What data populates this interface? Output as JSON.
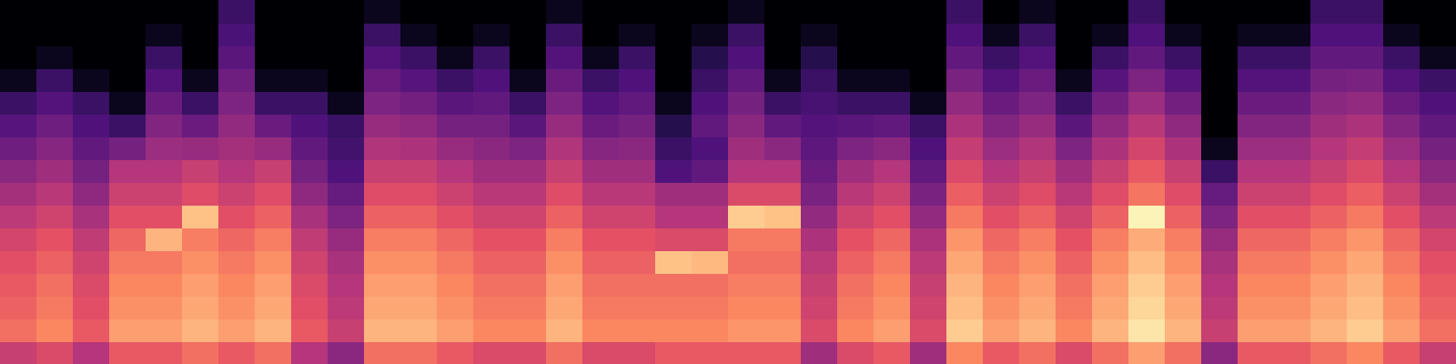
{
  "chart_data": {
    "type": "heatmap",
    "tick_labels": false,
    "xlim": [
      0,
      40
    ],
    "ylim": [
      0,
      16
    ],
    "color_range": [
      0,
      100
    ],
    "cells": [
      [
        55,
        70,
        67,
        65,
        62,
        58,
        52,
        46,
        40,
        33,
        27,
        20,
        5,
        0,
        0,
        0
      ],
      [
        60,
        75,
        72,
        70,
        67,
        63,
        57,
        51,
        45,
        39,
        33,
        26,
        20,
        5,
        0,
        0
      ],
      [
        50,
        65,
        62,
        60,
        57,
        53,
        47,
        41,
        35,
        30,
        25,
        20,
        5,
        0,
        0,
        0
      ],
      [
        65,
        80,
        77,
        75,
        72,
        68,
        62,
        56,
        50,
        35,
        20,
        5,
        0,
        0,
        0,
        0
      ],
      [
        65,
        80,
        77,
        75,
        72,
        85,
        62,
        56,
        50,
        44,
        38,
        32,
        26,
        20,
        5,
        0
      ],
      [
        70,
        85,
        82,
        80,
        77,
        73,
        88,
        61,
        55,
        43,
        32,
        20,
        5,
        0,
        0,
        0
      ],
      [
        65,
        80,
        77,
        75,
        72,
        68,
        62,
        56,
        50,
        46,
        42,
        37,
        33,
        28,
        24,
        20
      ],
      [
        70,
        85,
        82,
        80,
        77,
        73,
        67,
        61,
        55,
        43,
        32,
        20,
        5,
        0,
        0,
        0
      ],
      [
        50,
        65,
        62,
        60,
        57,
        53,
        47,
        41,
        35,
        30,
        25,
        20,
        5,
        0,
        0,
        0
      ],
      [
        40,
        55,
        52,
        50,
        47,
        43,
        37,
        31,
        25,
        22,
        20,
        5,
        0,
        0,
        0,
        0
      ],
      [
        70,
        85,
        82,
        80,
        77,
        73,
        67,
        61,
        55,
        49,
        43,
        37,
        32,
        26,
        20,
        5
      ],
      [
        70,
        85,
        82,
        80,
        77,
        73,
        67,
        61,
        55,
        48,
        41,
        34,
        27,
        20,
        5,
        0
      ],
      [
        65,
        80,
        77,
        75,
        72,
        68,
        62,
        56,
        50,
        43,
        35,
        28,
        20,
        5,
        0,
        0
      ],
      [
        60,
        75,
        72,
        70,
        67,
        63,
        57,
        51,
        45,
        40,
        35,
        30,
        25,
        20,
        5,
        0
      ],
      [
        60,
        75,
        72,
        70,
        67,
        63,
        57,
        51,
        45,
        37,
        28,
        20,
        5,
        0,
        0,
        0
      ],
      [
        70,
        85,
        82,
        80,
        77,
        73,
        67,
        61,
        55,
        49,
        43,
        37,
        32,
        26,
        20,
        5
      ],
      [
        60,
        75,
        72,
        70,
        67,
        63,
        57,
        51,
        45,
        39,
        32,
        26,
        20,
        5,
        0,
        0
      ],
      [
        60,
        75,
        72,
        70,
        67,
        63,
        57,
        51,
        45,
        40,
        35,
        30,
        25,
        20,
        5,
        0
      ],
      [
        65,
        75,
        72,
        70,
        88,
        60,
        50,
        45,
        25,
        20,
        15,
        5,
        0,
        0,
        0,
        0
      ],
      [
        65,
        75,
        72,
        70,
        86,
        60,
        50,
        45,
        30,
        25,
        30,
        25,
        20,
        15,
        5,
        0
      ],
      [
        65,
        78,
        75,
        73,
        70,
        72,
        90,
        60,
        50,
        45,
        40,
        35,
        30,
        25,
        20,
        5
      ],
      [
        65,
        78,
        75,
        73,
        70,
        72,
        88,
        60,
        50,
        40,
        30,
        20,
        5,
        0,
        0,
        0
      ],
      [
        45,
        60,
        57,
        55,
        52,
        48,
        42,
        36,
        32,
        29,
        26,
        23,
        20,
        15,
        5,
        0
      ],
      [
        60,
        75,
        72,
        70,
        67,
        63,
        57,
        51,
        45,
        37,
        28,
        20,
        5,
        0,
        0,
        0
      ],
      [
        65,
        80,
        77,
        75,
        72,
        68,
        62,
        56,
        50,
        40,
        30,
        20,
        5,
        0,
        0,
        0
      ],
      [
        45,
        60,
        57,
        55,
        52,
        48,
        42,
        36,
        30,
        25,
        20,
        5,
        0,
        0,
        0,
        0
      ],
      [
        75,
        90,
        87,
        85,
        82,
        78,
        72,
        66,
        60,
        54,
        48,
        42,
        36,
        30,
        25,
        20
      ],
      [
        65,
        80,
        77,
        75,
        72,
        68,
        62,
        56,
        50,
        44,
        38,
        32,
        26,
        20,
        5,
        0
      ],
      [
        70,
        85,
        82,
        80,
        77,
        73,
        67,
        61,
        55,
        49,
        43,
        37,
        32,
        26,
        20,
        5
      ],
      [
        60,
        75,
        72,
        70,
        67,
        63,
        57,
        51,
        45,
        37,
        28,
        20,
        5,
        0,
        0,
        0
      ],
      [
        70,
        85,
        82,
        80,
        77,
        73,
        67,
        61,
        55,
        48,
        41,
        34,
        27,
        20,
        5,
        0
      ],
      [
        80,
        95,
        92,
        90,
        87,
        83,
        98,
        71,
        65,
        58,
        51,
        44,
        37,
        30,
        25,
        20
      ],
      [
        70,
        85,
        82,
        80,
        77,
        73,
        67,
        61,
        55,
        48,
        41,
        34,
        27,
        20,
        5,
        0
      ],
      [
        40,
        55,
        52,
        50,
        47,
        43,
        37,
        31,
        20,
        5,
        0,
        0,
        0,
        0,
        0,
        0
      ],
      [
        65,
        80,
        77,
        75,
        72,
        68,
        62,
        56,
        50,
        44,
        38,
        32,
        26,
        20,
        5,
        0
      ],
      [
        65,
        80,
        77,
        75,
        72,
        68,
        62,
        56,
        50,
        44,
        38,
        32,
        26,
        20,
        5,
        0
      ],
      [
        70,
        85,
        82,
        80,
        77,
        73,
        67,
        61,
        55,
        50,
        45,
        40,
        35,
        30,
        25,
        20
      ],
      [
        75,
        90,
        87,
        85,
        82,
        78,
        72,
        66,
        60,
        54,
        48,
        42,
        36,
        30,
        25,
        20
      ],
      [
        65,
        80,
        77,
        75,
        72,
        68,
        62,
        56,
        50,
        44,
        38,
        32,
        26,
        20,
        5,
        0
      ],
      [
        55,
        70,
        67,
        65,
        62,
        58,
        52,
        46,
        40,
        35,
        30,
        25,
        20,
        5,
        0,
        0
      ]
    ]
  }
}
